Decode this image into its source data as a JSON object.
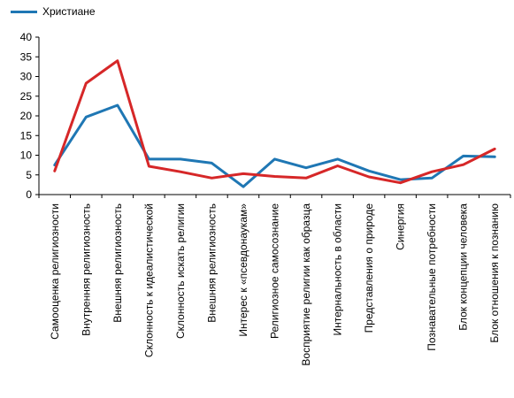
{
  "chart_data": {
    "type": "line",
    "categories": [
      "Самооценка религиозности",
      "Внутренняя религиозность",
      "Внешняя религиозность",
      "Склонность к идеалистической",
      "Склонность искать  религии",
      "Внешняя религиозность",
      "Интерес к «псевдонаукам»",
      "Религиозное самосознание",
      "Восприятие религии как образца",
      "Интернальность в области",
      "Представления о природе",
      "Синергия",
      "Познавательные потребности",
      "Блок концепции человека",
      "Блок отношения к познанию"
    ],
    "series": [
      {
        "name": "Христиане",
        "color": "#1f77b4",
        "values": [
          7.5,
          19.7,
          22.7,
          9.0,
          9.0,
          8.0,
          2.0,
          9.0,
          6.8,
          9.0,
          6.0,
          3.8,
          4.2,
          9.8,
          9.6
        ]
      },
      {
        "name": "",
        "color": "#d62728",
        "values": [
          6.0,
          28.3,
          34.0,
          7.2,
          5.8,
          4.2,
          5.3,
          4.6,
          4.2,
          7.3,
          4.5,
          3.0,
          5.8,
          7.6,
          11.6
        ]
      }
    ],
    "ylim": [
      0,
      40
    ],
    "yticks": [
      0,
      5,
      10,
      15,
      20,
      25,
      30,
      35,
      40
    ],
    "grid": false,
    "legend": "top-left"
  }
}
